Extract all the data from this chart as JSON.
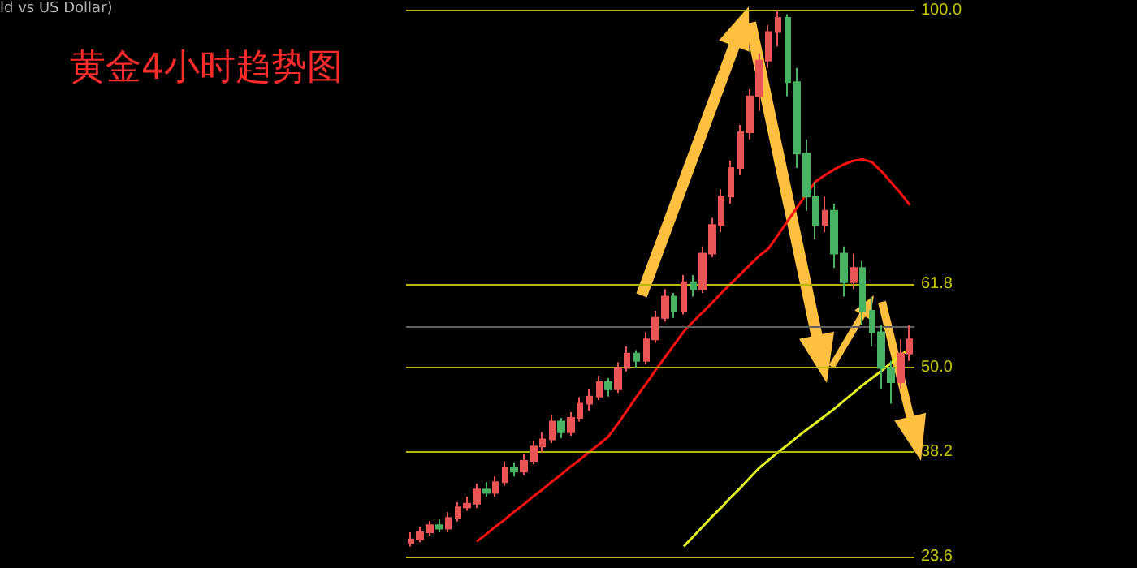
{
  "chart_data": {
    "type": "candlestick",
    "title": "黄金4小时趋势图",
    "annotations": [
      "ld vs US Dollar)"
    ],
    "categories": [
      null,
      null,
      null,
      null,
      null,
      null,
      null,
      null,
      null,
      null,
      null,
      null,
      null,
      null,
      null,
      null,
      null,
      null,
      null,
      null,
      null,
      null,
      null,
      null,
      null,
      null,
      null,
      null,
      null,
      null,
      null,
      null,
      null,
      null,
      null,
      null,
      null,
      null,
      null,
      null,
      null,
      null,
      null,
      null,
      null,
      null,
      null,
      null,
      null,
      null,
      null,
      null,
      null,
      null
    ],
    "ohlc": [
      [
        25.5,
        27,
        25,
        26
      ],
      [
        26,
        27.8,
        25.6,
        27
      ],
      [
        27,
        28.6,
        26.5,
        28
      ],
      [
        28,
        28.8,
        27,
        27.5
      ],
      [
        27.5,
        29.8,
        27,
        29
      ],
      [
        29,
        31.2,
        28.5,
        30.5
      ],
      [
        30.5,
        32,
        30,
        31
      ],
      [
        31,
        33.8,
        30.4,
        33
      ],
      [
        33,
        34,
        32,
        32.5
      ],
      [
        32.5,
        34.8,
        32,
        34
      ],
      [
        34,
        36.9,
        33.5,
        36
      ],
      [
        36,
        36.8,
        34.8,
        35.5
      ],
      [
        35.5,
        37.9,
        35,
        37
      ],
      [
        37,
        39.8,
        36.5,
        39
      ],
      [
        39,
        41,
        38.2,
        40
      ],
      [
        40,
        43.4,
        39.5,
        42.5
      ],
      [
        42.5,
        43,
        40.2,
        41
      ],
      [
        41,
        43.8,
        40.5,
        43
      ],
      [
        43,
        45.9,
        42.5,
        45
      ],
      [
        45,
        47,
        44,
        46
      ],
      [
        46,
        48.9,
        45.5,
        48
      ],
      [
        48,
        48.6,
        46,
        47
      ],
      [
        47,
        50.8,
        46.5,
        50
      ],
      [
        50,
        53,
        49.5,
        52
      ],
      [
        52,
        52.5,
        50,
        51
      ],
      [
        51,
        55,
        50.5,
        54
      ],
      [
        54,
        58,
        53.5,
        57
      ],
      [
        57,
        61,
        56.5,
        60
      ],
      [
        60,
        60.5,
        57,
        58
      ],
      [
        58,
        63,
        57.5,
        62
      ],
      [
        62,
        63,
        60,
        61
      ],
      [
        61,
        67,
        60.5,
        66
      ],
      [
        66,
        71,
        65.5,
        70
      ],
      [
        70,
        75,
        69,
        74
      ],
      [
        74,
        79,
        73,
        78
      ],
      [
        78,
        84,
        77,
        83
      ],
      [
        83,
        89,
        82,
        88
      ],
      [
        88,
        94,
        86,
        93
      ],
      [
        93,
        98,
        92,
        97
      ],
      [
        97,
        100,
        95,
        99
      ],
      [
        99,
        99.5,
        88,
        90
      ],
      [
        90,
        92,
        78,
        80
      ],
      [
        80,
        82,
        72,
        74
      ],
      [
        74,
        76,
        68,
        70
      ],
      [
        70,
        74,
        69,
        72
      ],
      [
        72,
        73,
        64,
        66
      ],
      [
        66,
        67,
        60,
        62
      ],
      [
        62,
        66,
        61,
        64
      ],
      [
        64,
        65,
        56,
        58
      ],
      [
        58,
        60,
        53,
        55
      ],
      [
        55,
        56,
        47,
        50
      ],
      [
        50,
        51,
        45,
        48
      ],
      [
        48,
        54,
        47,
        52
      ],
      [
        52,
        56,
        51,
        54
      ]
    ],
    "series": [
      {
        "type": "line",
        "color": "#ff1010",
        "values": [
          null,
          null,
          null,
          null,
          null,
          null,
          null,
          25.7,
          26.7,
          27.8,
          28.8,
          29.9,
          30.9,
          32,
          33,
          34.1,
          35.1,
          36.2,
          37.2,
          38.3,
          39.3,
          40.4,
          42.2,
          44.1,
          46,
          47.8,
          49.7,
          51.5,
          53.3,
          55.1,
          56.5,
          57.8,
          59.1,
          60.5,
          61.8,
          63.1,
          64.4,
          65.7,
          66.7,
          68.6,
          70.5,
          72.4,
          74.3,
          76.1,
          77,
          77.8,
          78.5,
          79,
          79.2,
          78.8,
          77.5,
          76,
          74.5,
          72.8
        ]
      },
      {
        "type": "line",
        "color": "#e0f020",
        "values": [
          null,
          null,
          null,
          null,
          null,
          null,
          null,
          null,
          null,
          null,
          null,
          null,
          null,
          null,
          null,
          null,
          null,
          null,
          null,
          null,
          null,
          null,
          null,
          null,
          null,
          null,
          null,
          null,
          null,
          25,
          26.4,
          27.8,
          29.2,
          30.5,
          31.9,
          33.2,
          34.6,
          36,
          37.1,
          38.2,
          39.2,
          40.3,
          41.3,
          42.3,
          43.3,
          44.3,
          45.4,
          46.5,
          47.6,
          48.6,
          49.6,
          50.7,
          51.8,
          52.6
        ]
      }
    ],
    "ylim": [
      22,
      101.5
    ],
    "yticks": [
      {
        "value": 23.6,
        "label": "23.6"
      },
      {
        "value": 38.2,
        "label": "38.2"
      },
      {
        "value": 50,
        "label": "50.0"
      },
      {
        "value": 61.8,
        "label": "61.8"
      },
      {
        "value": 100,
        "label": "100.0"
      }
    ],
    "tick_labels": "y",
    "ref_lines": [
      {
        "axis": "y",
        "value": 100,
        "label": null,
        "color": "#b8b800"
      },
      {
        "axis": "y",
        "value": 61.8,
        "label": null,
        "color": "#b8b800"
      },
      {
        "axis": "y",
        "value": 50,
        "label": null,
        "color": "#b8b800"
      },
      {
        "axis": "y",
        "value": 38.2,
        "label": null,
        "color": "#b8b800"
      },
      {
        "axis": "y",
        "value": 23.6,
        "label": null,
        "color": "#b8b800"
      },
      {
        "axis": "y",
        "value": 55.7,
        "label": null,
        "color": "#606060"
      }
    ]
  }
}
